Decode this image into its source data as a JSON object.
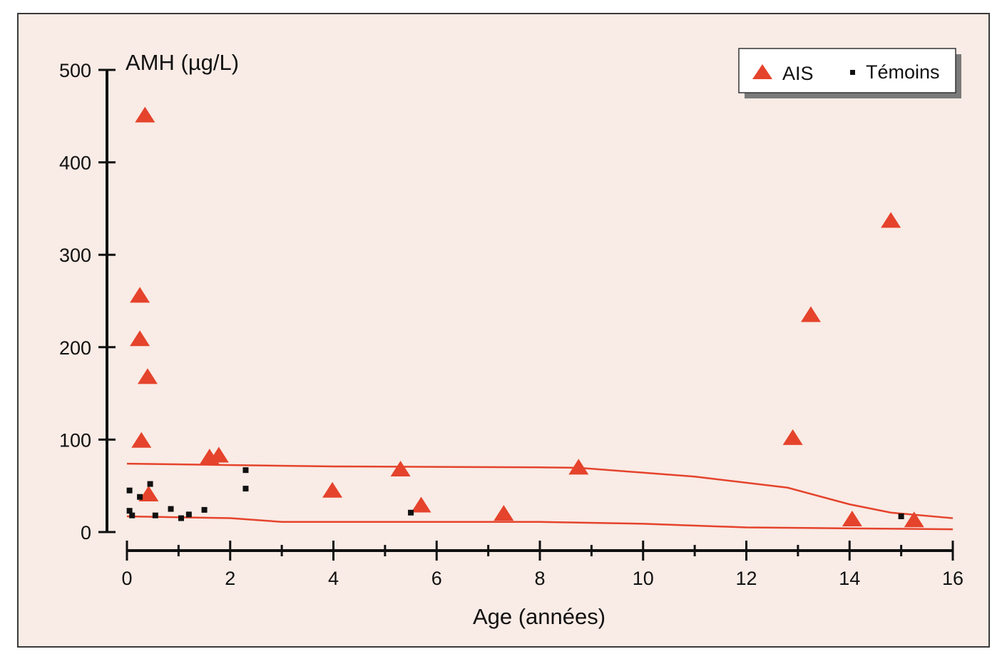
{
  "chart_data": {
    "type": "scatter",
    "xlabel": "Age (années)",
    "ylabel": "AMH (µg/L)",
    "xlim": [
      0,
      16
    ],
    "ylim": [
      0,
      500
    ],
    "x_ticks": [
      0,
      2,
      4,
      6,
      8,
      10,
      12,
      14,
      16
    ],
    "y_ticks": [
      0,
      100,
      200,
      300,
      400,
      500
    ],
    "grid": false,
    "legend_placement": "top-right",
    "series": [
      {
        "name": "AIS",
        "marker": "triangle",
        "color": "#e5432c",
        "points": [
          [
            0.35,
            450
          ],
          [
            0.25,
            255
          ],
          [
            0.25,
            208
          ],
          [
            0.4,
            167
          ],
          [
            0.28,
            98
          ],
          [
            0.42,
            40
          ],
          [
            1.6,
            80
          ],
          [
            1.78,
            82
          ],
          [
            3.98,
            44
          ],
          [
            5.3,
            67
          ],
          [
            5.7,
            28
          ],
          [
            7.3,
            19
          ],
          [
            8.75,
            69
          ],
          [
            12.9,
            101
          ],
          [
            13.25,
            234
          ],
          [
            14.05,
            13
          ],
          [
            14.8,
            336
          ],
          [
            15.25,
            12
          ]
        ]
      },
      {
        "name": "Témoins",
        "marker": "square",
        "color": "#111111",
        "points": [
          [
            0.05,
            45
          ],
          [
            0.05,
            23
          ],
          [
            0.1,
            18
          ],
          [
            0.25,
            38
          ],
          [
            0.45,
            52
          ],
          [
            0.55,
            18
          ],
          [
            0.85,
            25
          ],
          [
            1.05,
            15
          ],
          [
            1.2,
            19
          ],
          [
            1.5,
            24
          ],
          [
            2.3,
            67
          ],
          [
            2.3,
            47
          ],
          [
            5.5,
            21
          ],
          [
            15.0,
            17
          ]
        ]
      }
    ],
    "reference_lines": {
      "color": "#e5432c",
      "upper": [
        [
          0,
          74
        ],
        [
          4,
          71
        ],
        [
          8,
          70
        ],
        [
          8.75,
          69.5
        ],
        [
          11,
          60
        ],
        [
          12.8,
          48
        ],
        [
          14,
          30
        ],
        [
          14.8,
          21
        ],
        [
          16,
          15
        ]
      ],
      "lower": [
        [
          0,
          17
        ],
        [
          2,
          15
        ],
        [
          3,
          11
        ],
        [
          8,
          11
        ],
        [
          10,
          9
        ],
        [
          12,
          5
        ],
        [
          14,
          4
        ],
        [
          16,
          3
        ]
      ]
    }
  }
}
